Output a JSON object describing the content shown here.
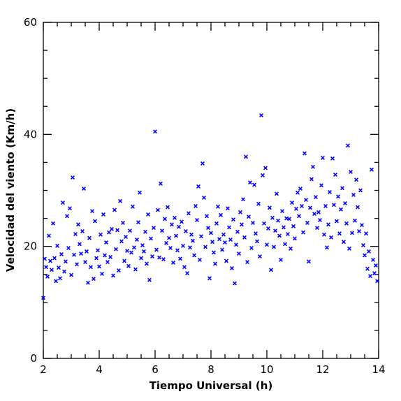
{
  "chart_data": {
    "type": "scatter",
    "xlabel": "Tiempo Universal (h)",
    "ylabel": "Velocidad del viento (Km/h)",
    "xlim": [
      2,
      14
    ],
    "ylim": [
      0,
      60
    ],
    "x_ticks": [
      2,
      4,
      6,
      8,
      10,
      12,
      14
    ],
    "y_ticks": [
      0,
      20,
      40,
      60
    ],
    "x_tick_labels": [
      "2",
      "4",
      "6",
      "8",
      "10",
      "12",
      "14"
    ],
    "y_tick_labels": [
      "0",
      "20",
      "40",
      "60"
    ],
    "marker": "x",
    "color": "#0000ff",
    "grid": false,
    "series": [
      {
        "points": [
          [
            2.0,
            10.8
          ],
          [
            2.05,
            17.8
          ],
          [
            2.1,
            16.3
          ],
          [
            2.15,
            14.6
          ],
          [
            2.2,
            21.9
          ],
          [
            2.25,
            17.4
          ],
          [
            2.3,
            15.8
          ],
          [
            2.35,
            24.1
          ],
          [
            2.4,
            17.9
          ],
          [
            2.45,
            13.8
          ],
          [
            2.5,
            20.1
          ],
          [
            2.55,
            16.2
          ],
          [
            2.6,
            14.3
          ],
          [
            2.65,
            18.6
          ],
          [
            2.7,
            27.8
          ],
          [
            2.75,
            15.5
          ],
          [
            2.8,
            17.3
          ],
          [
            2.85,
            25.4
          ],
          [
            2.9,
            19.7
          ],
          [
            2.95,
            26.8
          ],
          [
            3.0,
            14.9
          ],
          [
            3.05,
            32.3
          ],
          [
            3.1,
            18.5
          ],
          [
            3.15,
            22.2
          ],
          [
            3.2,
            16.8
          ],
          [
            3.25,
            23.9
          ],
          [
            3.3,
            20.4
          ],
          [
            3.35,
            18.7
          ],
          [
            3.4,
            22.7
          ],
          [
            3.45,
            30.3
          ],
          [
            3.5,
            17.2
          ],
          [
            3.55,
            19.1
          ],
          [
            3.6,
            13.5
          ],
          [
            3.65,
            21.5
          ],
          [
            3.7,
            16.3
          ],
          [
            3.75,
            26.3
          ],
          [
            3.8,
            14.2
          ],
          [
            3.85,
            24.5
          ],
          [
            3.9,
            17.9
          ],
          [
            3.95,
            19.3
          ],
          [
            4.0,
            16.4
          ],
          [
            4.05,
            22.1
          ],
          [
            4.1,
            15.1
          ],
          [
            4.15,
            25.7
          ],
          [
            4.2,
            18.4
          ],
          [
            4.25,
            20.7
          ],
          [
            4.3,
            17.2
          ],
          [
            4.35,
            22.5
          ],
          [
            4.4,
            18.1
          ],
          [
            4.45,
            23.1
          ],
          [
            4.5,
            14.8
          ],
          [
            4.55,
            26.5
          ],
          [
            4.6,
            19.5
          ],
          [
            4.65,
            22.9
          ],
          [
            4.7,
            15.7
          ],
          [
            4.75,
            28.1
          ],
          [
            4.8,
            20.9
          ],
          [
            4.85,
            24.2
          ],
          [
            4.9,
            17.4
          ],
          [
            4.95,
            21.7
          ],
          [
            5.0,
            19.2
          ],
          [
            5.05,
            16.5
          ],
          [
            5.1,
            22.8
          ],
          [
            5.15,
            18.9
          ],
          [
            5.2,
            27.1
          ],
          [
            5.25,
            19.8
          ],
          [
            5.3,
            15.9
          ],
          [
            5.35,
            21.2
          ],
          [
            5.4,
            24.3
          ],
          [
            5.45,
            29.6
          ],
          [
            5.5,
            17.9
          ],
          [
            5.55,
            20.2
          ],
          [
            5.6,
            19.1
          ],
          [
            5.65,
            22.6
          ],
          [
            5.7,
            16.9
          ],
          [
            5.75,
            25.7
          ],
          [
            5.8,
            14.0
          ],
          [
            5.85,
            21.4
          ],
          [
            5.9,
            18.2
          ],
          [
            5.95,
            23.3
          ],
          [
            6.0,
            40.5
          ],
          [
            6.05,
            19.4
          ],
          [
            6.1,
            26.5
          ],
          [
            6.15,
            18.0
          ],
          [
            6.2,
            31.2
          ],
          [
            6.25,
            22.8
          ],
          [
            6.3,
            17.7
          ],
          [
            6.35,
            24.9
          ],
          [
            6.4,
            20.6
          ],
          [
            6.45,
            27.0
          ],
          [
            6.5,
            21.5
          ],
          [
            6.55,
            19.7
          ],
          [
            6.6,
            23.9
          ],
          [
            6.65,
            17.1
          ],
          [
            6.7,
            25.1
          ],
          [
            6.75,
            21.9
          ],
          [
            6.8,
            19.3
          ],
          [
            6.85,
            23.5
          ],
          [
            6.9,
            17.8
          ],
          [
            6.95,
            24.4
          ],
          [
            7.0,
            20.1
          ],
          [
            7.05,
            16.3
          ],
          [
            7.1,
            22.7
          ],
          [
            7.15,
            15.2
          ],
          [
            7.2,
            25.9
          ],
          [
            7.25,
            19.8
          ],
          [
            7.3,
            22.1
          ],
          [
            7.35,
            21.0
          ],
          [
            7.4,
            18.4
          ],
          [
            7.45,
            27.2
          ],
          [
            7.5,
            24.7
          ],
          [
            7.55,
            30.7
          ],
          [
            7.6,
            17.6
          ],
          [
            7.65,
            21.8
          ],
          [
            7.7,
            34.8
          ],
          [
            7.75,
            28.7
          ],
          [
            7.8,
            19.9
          ],
          [
            7.85,
            25.4
          ],
          [
            7.9,
            23.3
          ],
          [
            7.95,
            14.3
          ],
          [
            8.0,
            22.4
          ],
          [
            8.05,
            20.8
          ],
          [
            8.1,
            18.9
          ],
          [
            8.15,
            16.9
          ],
          [
            8.2,
            24.1
          ],
          [
            8.25,
            27.1
          ],
          [
            8.3,
            21.3
          ],
          [
            8.35,
            25.6
          ],
          [
            8.4,
            19.4
          ],
          [
            8.45,
            22.1
          ],
          [
            8.5,
            20.7
          ],
          [
            8.55,
            17.4
          ],
          [
            8.6,
            26.8
          ],
          [
            8.65,
            23.4
          ],
          [
            8.7,
            21.2
          ],
          [
            8.75,
            16.1
          ],
          [
            8.8,
            24.8
          ],
          [
            8.85,
            13.4
          ],
          [
            8.9,
            20.3
          ],
          [
            8.95,
            22.6
          ],
          [
            9.0,
            18.7
          ],
          [
            9.05,
            26.1
          ],
          [
            9.1,
            23.9
          ],
          [
            9.15,
            28.4
          ],
          [
            9.2,
            21.6
          ],
          [
            9.25,
            36.0
          ],
          [
            9.3,
            17.2
          ],
          [
            9.35,
            25.3
          ],
          [
            9.4,
            31.4
          ],
          [
            9.45,
            19.7
          ],
          [
            9.5,
            24.2
          ],
          [
            9.55,
            31.0
          ],
          [
            9.6,
            22.3
          ],
          [
            9.65,
            20.9
          ],
          [
            9.7,
            27.6
          ],
          [
            9.75,
            18.2
          ],
          [
            9.8,
            43.4
          ],
          [
            9.85,
            32.7
          ],
          [
            9.9,
            24.1
          ],
          [
            9.95,
            34.0
          ],
          [
            10.0,
            20.3
          ],
          [
            10.05,
            23.2
          ],
          [
            10.1,
            26.9
          ],
          [
            10.15,
            15.8
          ],
          [
            10.2,
            25.1
          ],
          [
            10.25,
            19.9
          ],
          [
            10.3,
            22.8
          ],
          [
            10.35,
            29.4
          ],
          [
            10.4,
            24.6
          ],
          [
            10.45,
            21.9
          ],
          [
            10.5,
            17.6
          ],
          [
            10.55,
            26.3
          ],
          [
            10.6,
            23.4
          ],
          [
            10.65,
            20.4
          ],
          [
            10.7,
            25.0
          ],
          [
            10.75,
            22.2
          ],
          [
            10.8,
            24.9
          ],
          [
            10.85,
            19.6
          ],
          [
            10.9,
            27.8
          ],
          [
            10.95,
            23.6
          ],
          [
            11.0,
            21.4
          ],
          [
            11.05,
            26.7
          ],
          [
            11.1,
            29.6
          ],
          [
            11.15,
            25.4
          ],
          [
            11.2,
            30.3
          ],
          [
            11.25,
            27.2
          ],
          [
            11.3,
            22.5
          ],
          [
            11.35,
            36.6
          ],
          [
            11.4,
            28.3
          ],
          [
            11.45,
            24.2
          ],
          [
            11.5,
            17.3
          ],
          [
            11.55,
            26.9
          ],
          [
            11.6,
            32.0
          ],
          [
            11.65,
            34.2
          ],
          [
            11.7,
            25.8
          ],
          [
            11.75,
            28.8
          ],
          [
            11.8,
            23.3
          ],
          [
            11.85,
            26.1
          ],
          [
            11.9,
            24.7
          ],
          [
            11.95,
            30.9
          ],
          [
            12.0,
            35.8
          ],
          [
            12.05,
            22.1
          ],
          [
            12.1,
            27.2
          ],
          [
            12.15,
            19.8
          ],
          [
            12.2,
            23.9
          ],
          [
            12.25,
            29.7
          ],
          [
            12.3,
            21.6
          ],
          [
            12.35,
            35.7
          ],
          [
            12.4,
            27.4
          ],
          [
            12.45,
            32.8
          ],
          [
            12.5,
            24.5
          ],
          [
            12.55,
            28.9
          ],
          [
            12.6,
            22.3
          ],
          [
            12.65,
            26.6
          ],
          [
            12.7,
            30.4
          ],
          [
            12.75,
            20.8
          ],
          [
            12.8,
            27.7
          ],
          [
            12.85,
            24.1
          ],
          [
            12.9,
            38.0
          ],
          [
            12.95,
            19.6
          ],
          [
            13.0,
            33.3
          ],
          [
            13.05,
            22.4
          ],
          [
            13.1,
            29.2
          ],
          [
            13.15,
            24.6
          ],
          [
            13.2,
            31.9
          ],
          [
            13.25,
            27.0
          ],
          [
            13.3,
            22.7
          ],
          [
            13.35,
            30.0
          ],
          [
            13.4,
            23.8
          ],
          [
            13.45,
            20.2
          ],
          [
            13.5,
            18.4
          ],
          [
            13.55,
            22.3
          ],
          [
            13.6,
            16.0
          ],
          [
            13.65,
            19.1
          ],
          [
            13.7,
            14.7
          ],
          [
            13.75,
            33.7
          ],
          [
            13.8,
            17.6
          ],
          [
            13.85,
            15.2
          ],
          [
            13.9,
            16.6
          ],
          [
            13.95,
            13.8
          ]
        ]
      }
    ]
  }
}
